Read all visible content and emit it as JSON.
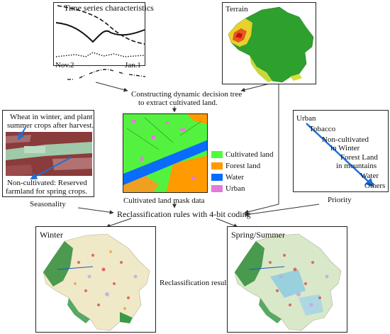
{
  "time_series": {
    "title": "Time series characteristics",
    "x_start": "Nov.2",
    "x_end": "Jan.1"
  },
  "terrain": {
    "title": "Terrain"
  },
  "decision_tree": {
    "line1": "Constructing dynamic decision tree",
    "line2": "to extract cultivated land."
  },
  "seasonality": {
    "top_note_1": "Wheat in winter, and plant",
    "top_note_2": "summer crops after harvest.",
    "bottom_note_1": "Non-cultivated: Reserved",
    "bottom_note_2": "farmland for spring crops.",
    "label": "Seasonality"
  },
  "mask": {
    "caption": "Cultivated land mask data",
    "legend": [
      {
        "label": "Cultivated land",
        "color": "#4cff3a"
      },
      {
        "label": "Forest land",
        "color": "#ff9a00"
      },
      {
        "label": "Water",
        "color": "#0a6cff"
      },
      {
        "label": "Urban",
        "color": "#e37ad9"
      }
    ]
  },
  "priority": {
    "items": [
      "Urban",
      "Tobacco",
      "Non-cultivated",
      "in Winter",
      "Forest Land",
      "in mountains",
      "Water",
      "Others"
    ],
    "label": "Priority"
  },
  "rules": {
    "text": "Reclassification rules with 4-bit coding"
  },
  "winter": {
    "title": "Winter"
  },
  "spring": {
    "title": "Spring/Summer"
  },
  "result": {
    "text": "Reclassification result"
  }
}
